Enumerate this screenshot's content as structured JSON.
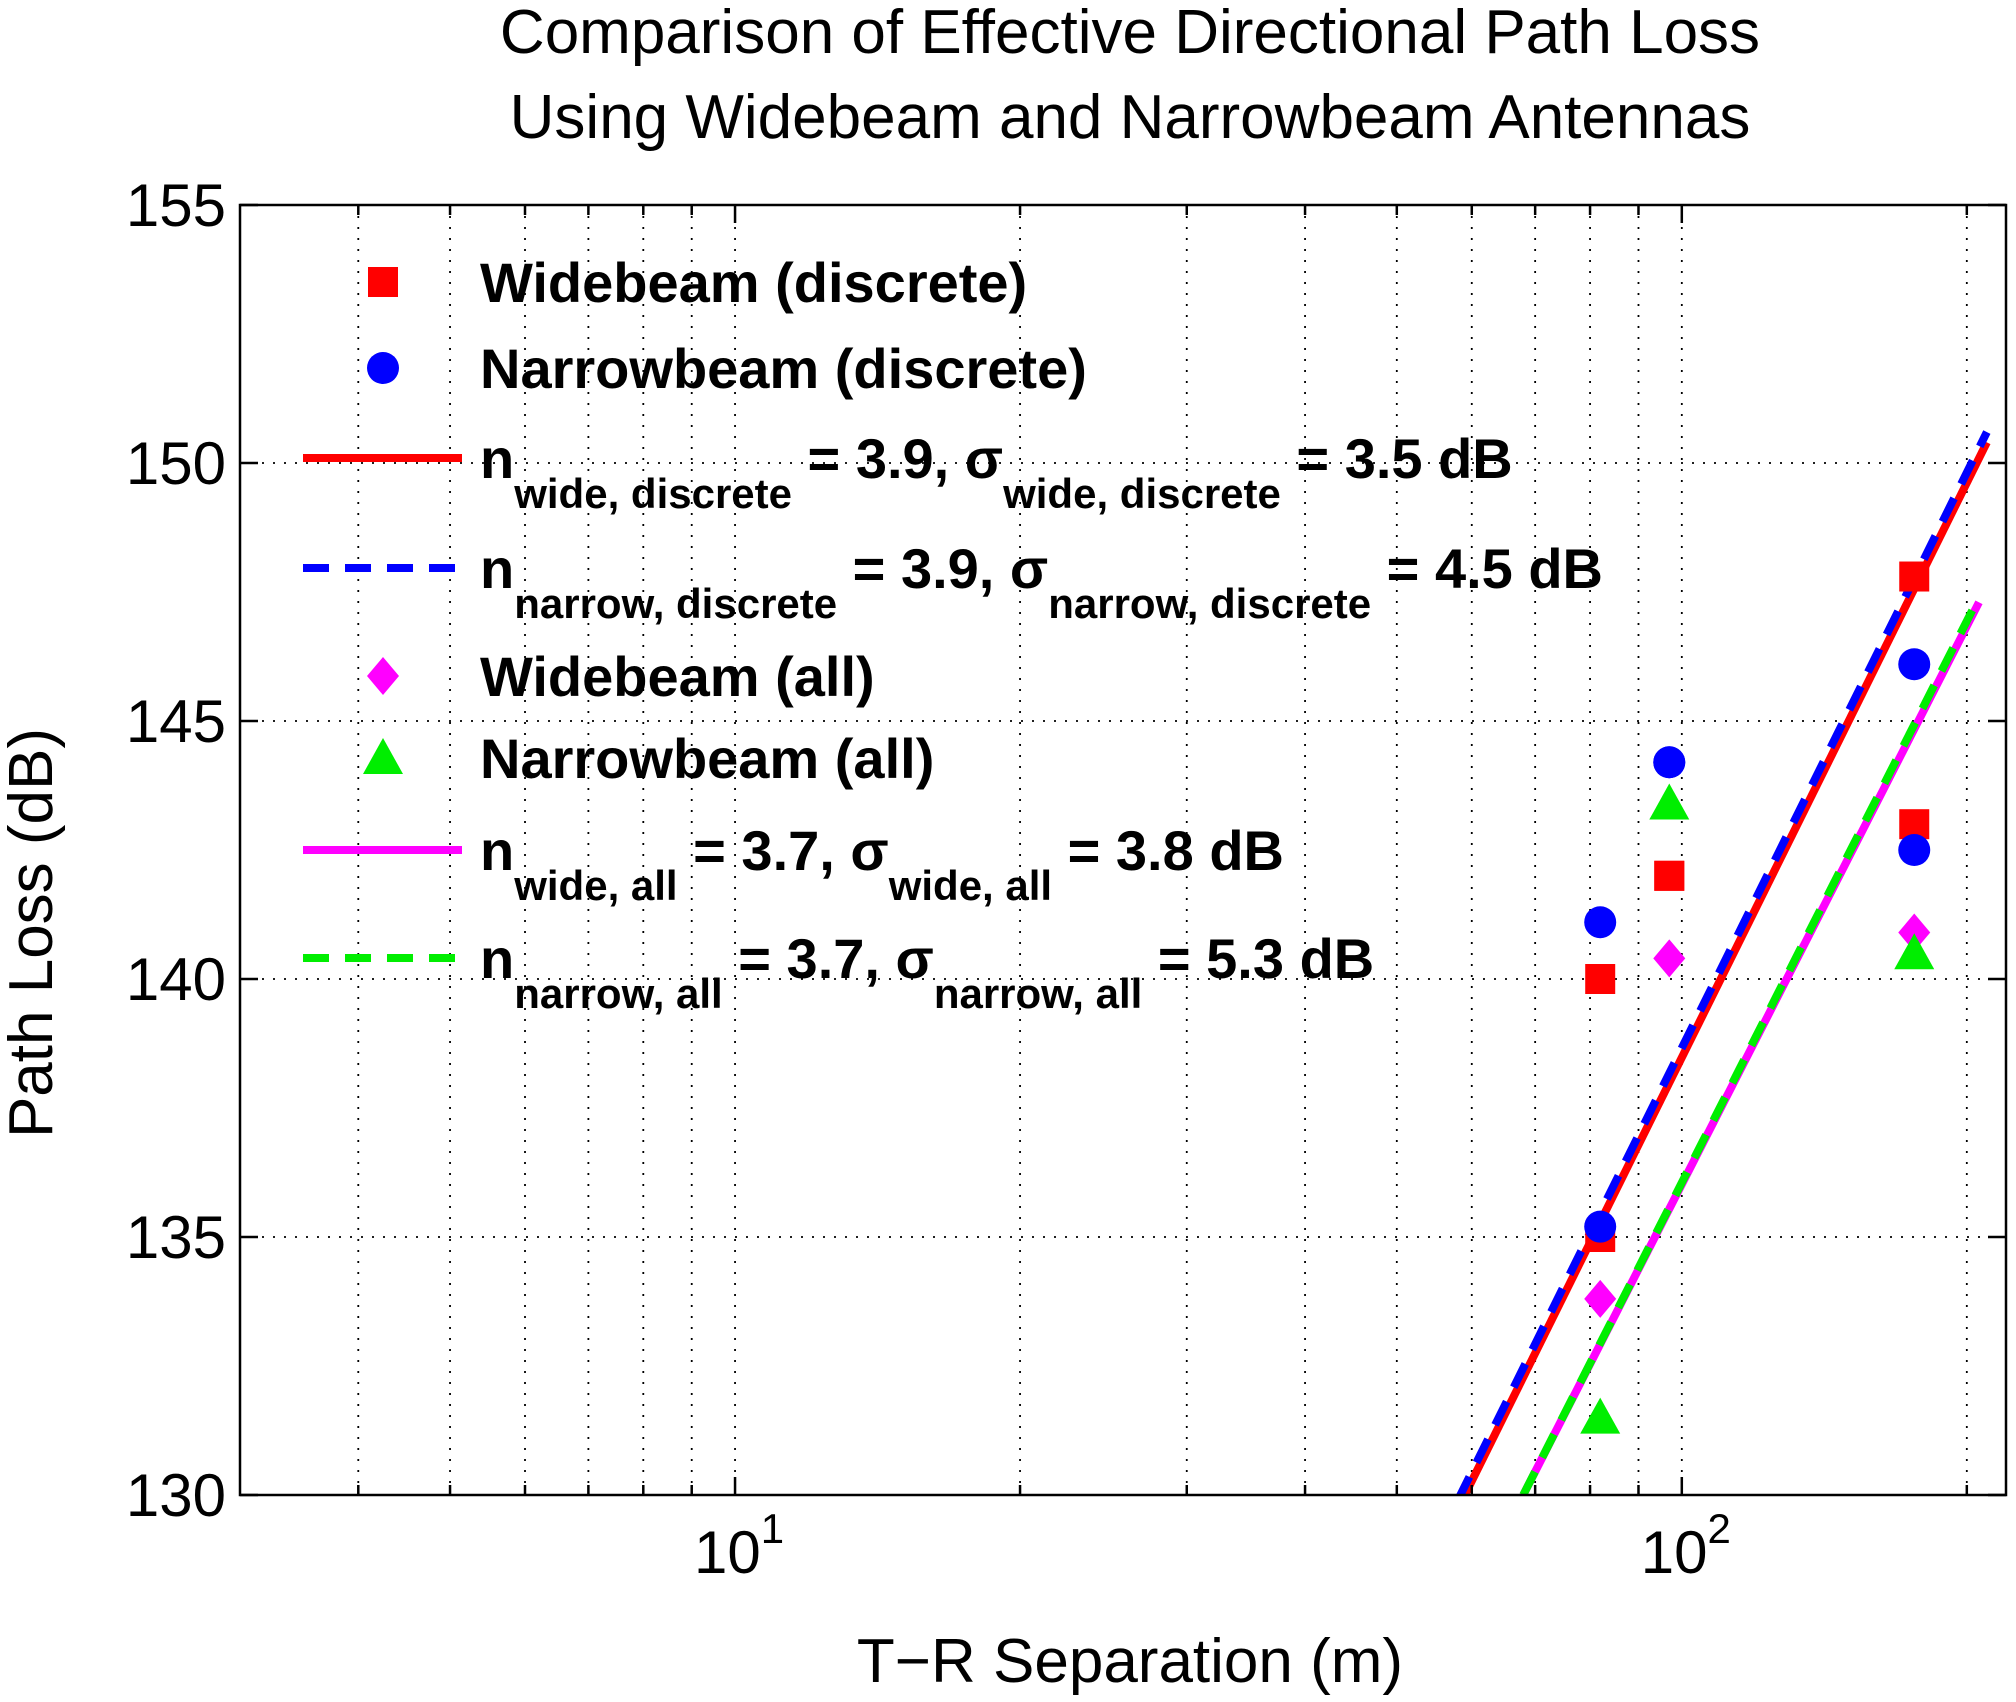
{
  "chart_data": {
    "type": "scatter",
    "title": [
      "Comparison of Effective Directional Path Loss",
      "Using Widebeam and Narrowbeam Antennas"
    ],
    "xlabel": "T−R Separation (m)",
    "ylabel": "Path Loss (dB)",
    "xscale": "log",
    "xlim": [
      3,
      220
    ],
    "ylim": [
      130,
      155
    ],
    "xticks": [
      {
        "value": 10,
        "base": "10",
        "exp": "1"
      },
      {
        "value": 100,
        "base": "10",
        "exp": "2"
      }
    ],
    "yticks": [
      130,
      135,
      140,
      145,
      150,
      155
    ],
    "grid": true,
    "legend_position": "top-left",
    "series": [
      {
        "name": "Widebeam (discrete)",
        "kind": "markers",
        "marker": "square",
        "color": "#ff0000",
        "x": [
          82,
          82,
          97,
          97,
          176,
          176
        ],
        "y": [
          140.0,
          135.0,
          142.0,
          142.0,
          147.8,
          143.0
        ]
      },
      {
        "name": "Narrowbeam (discrete)",
        "kind": "markers",
        "marker": "circle",
        "color": "#0000ff",
        "x": [
          82,
          82,
          97,
          97,
          176,
          176
        ],
        "y": [
          141.1,
          135.2,
          144.2,
          144.2,
          146.1,
          142.5
        ]
      },
      {
        "name": "Widebeam (all)",
        "kind": "markers",
        "marker": "diamond",
        "color": "#ff00ff",
        "x": [
          82,
          97,
          176
        ],
        "y": [
          133.8,
          140.4,
          140.9
        ]
      },
      {
        "name": "Narrowbeam (all)",
        "kind": "markers",
        "marker": "triangle",
        "color": "#00ee00",
        "x": [
          82,
          97,
          176
        ],
        "y": [
          131.5,
          143.4,
          140.5
        ]
      },
      {
        "name": "n_wide,discrete = 3.9, σ_wide,discrete = 3.5 dB",
        "kind": "line",
        "style": "solid",
        "color": "#ff0000",
        "x": [
          59,
          210
        ],
        "y": [
          130.0,
          150.4
        ]
      },
      {
        "name": "n_narrow,discrete = 3.9, σ_narrow,discrete = 4.5 dB",
        "kind": "line",
        "style": "dashed",
        "color": "#0000ff",
        "x": [
          58,
          210
        ],
        "y": [
          129.9,
          150.6
        ]
      },
      {
        "name": "n_wide,all = 3.7, σ_wide,all = 3.8 dB",
        "kind": "line",
        "style": "solid",
        "color": "#ff00ff",
        "x": [
          68,
          206
        ],
        "y": [
          130.0,
          147.3
        ]
      },
      {
        "name": "n_narrow,all = 3.7, σ_narrow,all = 5.3 dB",
        "kind": "line",
        "style": "dashed",
        "color": "#00ee00",
        "x": [
          68,
          206
        ],
        "y": [
          130.0,
          147.4
        ]
      }
    ],
    "legend": [
      {
        "marker": "square",
        "color": "#ff0000",
        "parts": [
          {
            "t": "Widebeam (discrete)"
          }
        ]
      },
      {
        "marker": "circle",
        "color": "#0000ff",
        "parts": [
          {
            "t": "Narrowbeam (discrete)"
          }
        ]
      },
      {
        "line": "solid",
        "color": "#ff0000",
        "parts": [
          {
            "t": "n"
          },
          {
            "t": "wide, discrete",
            "sub": true
          },
          {
            "t": " = 3.9, σ"
          },
          {
            "t": "wide, discrete",
            "sub": true
          },
          {
            "t": " = 3.5 dB"
          }
        ]
      },
      {
        "line": "dashed",
        "color": "#0000ff",
        "parts": [
          {
            "t": "n"
          },
          {
            "t": "narrow, discrete",
            "sub": true
          },
          {
            "t": " = 3.9, σ"
          },
          {
            "t": "narrow, discrete",
            "sub": true
          },
          {
            "t": " = 4.5 dB"
          }
        ]
      },
      {
        "marker": "diamond",
        "color": "#ff00ff",
        "parts": [
          {
            "t": "Widebeam (all)"
          }
        ]
      },
      {
        "marker": "triangle",
        "color": "#00ee00",
        "parts": [
          {
            "t": "Narrowbeam (all)"
          }
        ]
      },
      {
        "line": "solid",
        "color": "#ff00ff",
        "parts": [
          {
            "t": "n"
          },
          {
            "t": "wide, all",
            "sub": true
          },
          {
            "t": " = 3.7, σ"
          },
          {
            "t": "wide, all",
            "sub": true
          },
          {
            "t": " = 3.8 dB"
          }
        ]
      },
      {
        "line": "dashed",
        "color": "#00ee00",
        "parts": [
          {
            "t": "n"
          },
          {
            "t": "narrow, all",
            "sub": true
          },
          {
            "t": " = 3.7, σ"
          },
          {
            "t": "narrow, all",
            "sub": true
          },
          {
            "t": " = 5.3 dB"
          }
        ]
      }
    ]
  }
}
